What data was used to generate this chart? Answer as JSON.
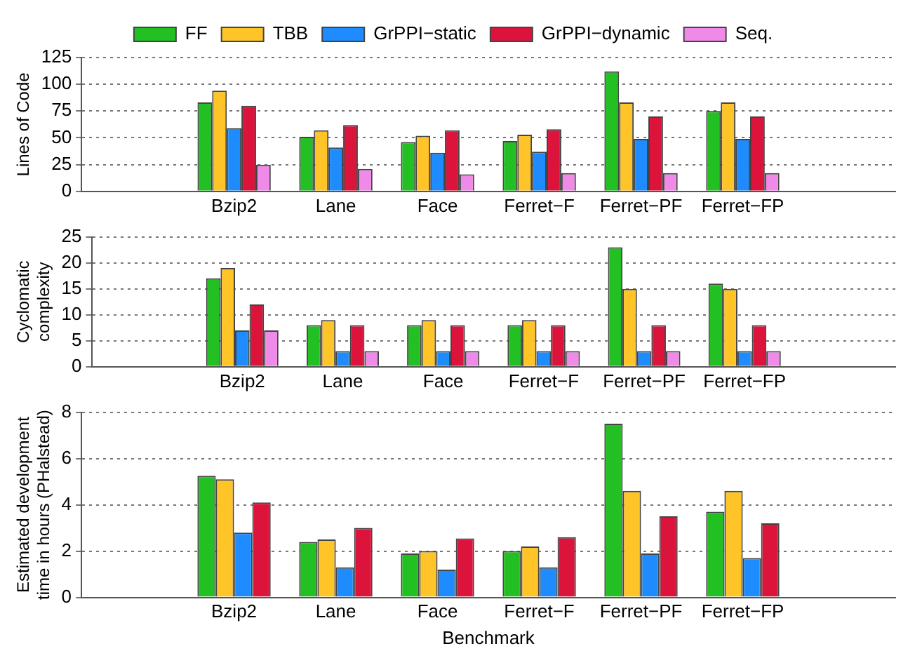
{
  "chart_data": [
    {
      "type": "bar",
      "ylabel": "Lines of Code",
      "categories": [
        null,
        "Bzip2",
        "Lane",
        "Face",
        "Ferret−F",
        "Ferret−PF",
        "Ferret−FP",
        null
      ],
      "ylim": [
        0,
        125
      ],
      "yticks": [
        0,
        25,
        50,
        75,
        100,
        125
      ],
      "grid": "y",
      "legend": "top",
      "series": [
        {
          "name": "FF",
          "color": "#22c022",
          "values": [
            null,
            83,
            51,
            46,
            47,
            112,
            75,
            null
          ]
        },
        {
          "name": "TBB",
          "color": "#ffc428",
          "values": [
            null,
            94,
            57,
            52,
            53,
            83,
            83,
            null
          ]
        },
        {
          "name": "GrPPI−static",
          "color": "#1e8cff",
          "values": [
            null,
            59,
            41,
            36,
            37,
            49,
            49,
            null
          ]
        },
        {
          "name": "GrPPI−dynamic",
          "color": "#dc143c",
          "values": [
            null,
            80,
            62,
            57,
            58,
            70,
            70,
            null
          ]
        },
        {
          "name": "Seq.",
          "color": "#f08ae8",
          "values": [
            null,
            25,
            21,
            16,
            17,
            17,
            17,
            null
          ]
        }
      ]
    },
    {
      "type": "bar",
      "ylabel": "Cyclomatic complexity",
      "categories": [
        null,
        "Bzip2",
        "Lane",
        "Face",
        "Ferret−F",
        "Ferret−PF",
        "Ferret−FP",
        null
      ],
      "ylim": [
        0,
        25
      ],
      "yticks": [
        0,
        5,
        10,
        15,
        20,
        25
      ],
      "grid": "y",
      "series": [
        {
          "color": "#22c022",
          "values": [
            null,
            17,
            8,
            8,
            8,
            23,
            16,
            null
          ]
        },
        {
          "color": "#ffc428",
          "values": [
            null,
            19,
            9,
            9,
            9,
            15,
            15,
            null
          ]
        },
        {
          "color": "#1e8cff",
          "values": [
            null,
            7,
            3,
            3,
            3,
            3,
            3,
            null
          ]
        },
        {
          "color": "#dc143c",
          "values": [
            null,
            12,
            8,
            8,
            8,
            8,
            8,
            null
          ]
        },
        {
          "color": "#f08ae8",
          "values": [
            null,
            7,
            3,
            3,
            3,
            3,
            3,
            null
          ]
        }
      ]
    },
    {
      "type": "bar",
      "ylabel": "Estimated development time in hours (PHalstead)",
      "xlabel": "Benchmark",
      "categories": [
        null,
        "Bzip2",
        "Lane",
        "Face",
        "Ferret−F",
        "Ferret−PF",
        "Ferret−FP",
        null
      ],
      "ylim": [
        0,
        8
      ],
      "yticks": [
        0,
        2,
        4,
        6,
        8
      ],
      "grid": "y",
      "series": [
        {
          "color": "#22c022",
          "values": [
            null,
            5.25,
            2.4,
            1.9,
            2.0,
            7.5,
            3.7,
            null
          ]
        },
        {
          "color": "#ffc428",
          "values": [
            null,
            5.1,
            2.5,
            2.0,
            2.2,
            4.6,
            4.6,
            null
          ]
        },
        {
          "color": "#1e8cff",
          "values": [
            null,
            2.8,
            1.3,
            1.2,
            1.3,
            1.9,
            1.7,
            null
          ]
        },
        {
          "color": "#dc143c",
          "values": [
            null,
            4.1,
            3.0,
            2.55,
            2.6,
            3.5,
            3.2,
            null
          ]
        }
      ]
    }
  ]
}
